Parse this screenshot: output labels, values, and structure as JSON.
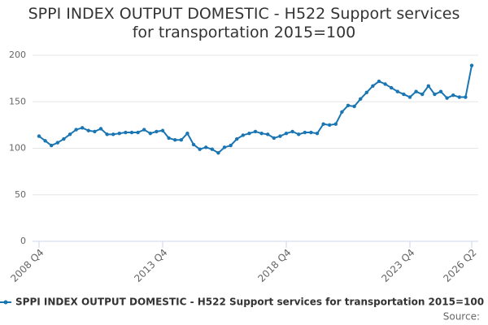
{
  "chart_data": {
    "type": "line",
    "title": "SPPI INDEX OUTPUT DOMESTIC - H522 Support services for transportation 2015=100",
    "categories": [
      "2008 Q4",
      null,
      null,
      null,
      null,
      null,
      null,
      null,
      null,
      null,
      null,
      null,
      null,
      null,
      null,
      null,
      null,
      null,
      null,
      null,
      "2013 Q4",
      null,
      null,
      null,
      null,
      null,
      null,
      null,
      null,
      null,
      null,
      null,
      null,
      null,
      null,
      null,
      null,
      null,
      null,
      null,
      "2018 Q4",
      null,
      null,
      null,
      null,
      null,
      null,
      null,
      null,
      null,
      null,
      null,
      null,
      null,
      null,
      null,
      null,
      null,
      null,
      null,
      "2023 Q4",
      null,
      null,
      null,
      null,
      null,
      null,
      null,
      null,
      null,
      "2026 Q2"
    ],
    "series": [
      {
        "name": "SPPI INDEX OUTPUT DOMESTIC - H522 Support services for transportation 2015=100",
        "color": "#1a75b3",
        "values": [
          113,
          108,
          103,
          106,
          110,
          115,
          120,
          122,
          119,
          118,
          121,
          115,
          115,
          116,
          117,
          117,
          117,
          120,
          116,
          118,
          119,
          111,
          109,
          109,
          116,
          104,
          99,
          101,
          99,
          95,
          101,
          103,
          110,
          114,
          116,
          118,
          116,
          115,
          111,
          113,
          116,
          118,
          115,
          117,
          117,
          116,
          126,
          125,
          126,
          139,
          146,
          145,
          153,
          160,
          167,
          172,
          169,
          165,
          161,
          158,
          155,
          161,
          158,
          167,
          158,
          161,
          154,
          157,
          155,
          155,
          189
        ]
      }
    ],
    "ylim": [
      0,
      200
    ],
    "yticks": [
      0,
      50,
      100,
      150,
      200
    ],
    "grid": true,
    "source": "Source:"
  }
}
